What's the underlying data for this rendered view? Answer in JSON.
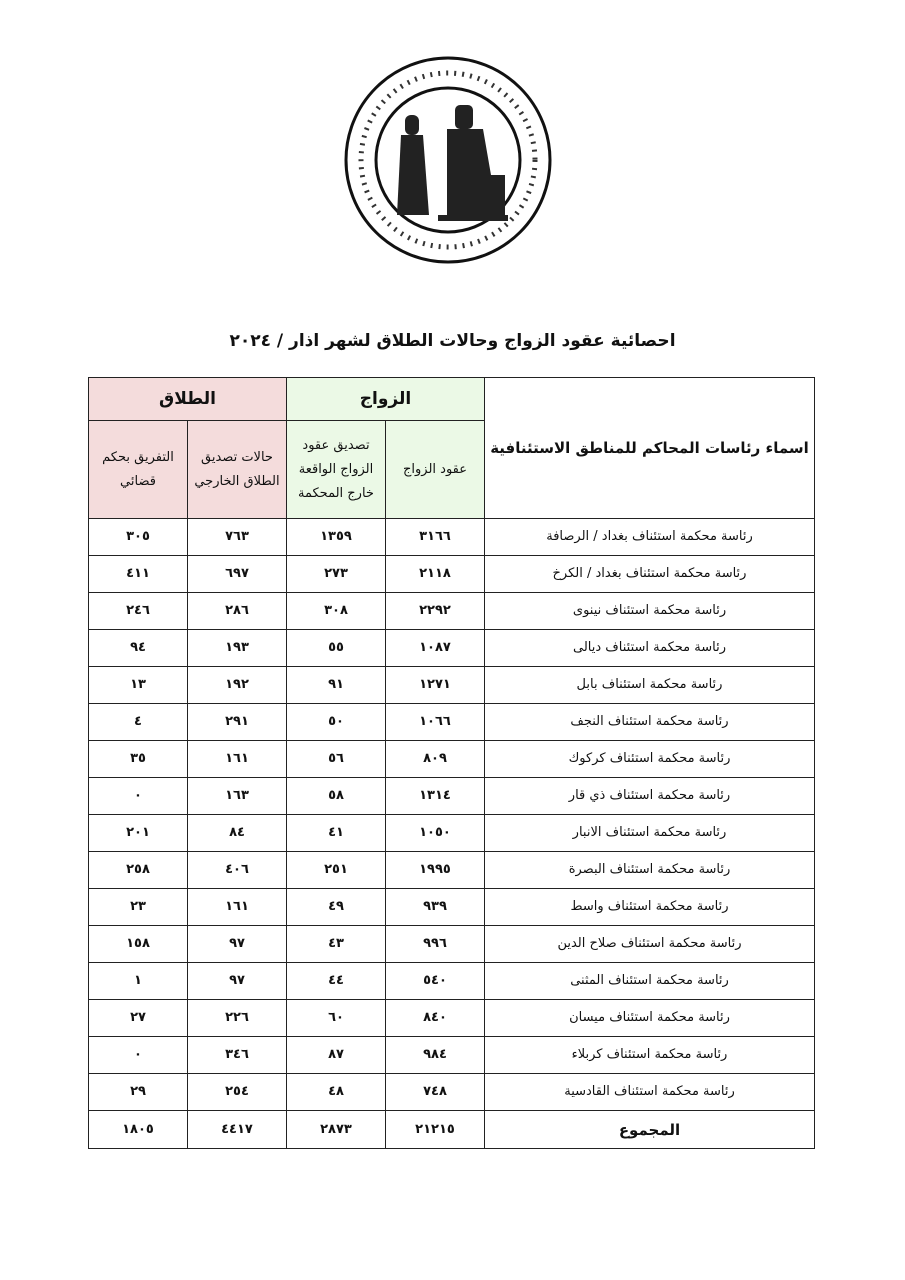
{
  "seal": {
    "arabic_text": "جمهورية العراق مجلس القضاء الأعلى",
    "english_text": "REPUBLIC OF IRAQ SUPREME JUDICIAL COUNCIL"
  },
  "title": "احصائية عقود الزواج وحالات الطلاق لشهر اذار / ٢٠٢٤",
  "headers": {
    "name": "اسماء رئاسات المحاكم للمناطق الاستئنافية",
    "marriage_group": "الزواج",
    "divorce_group": "الطلاق",
    "marriage_contracts": "عقود الزواج",
    "marriage_ratification": "تصديق عقود الزواج الواقعة خارج المحكمة",
    "divorce_ratification": "حالات تصديق الطلاق الخارجي",
    "judicial_separation": "التفريق بحكم قضائي"
  },
  "colors": {
    "marriage_header": "#ebf9e6",
    "divorce_header": "#f4dcdc"
  },
  "rows": [
    {
      "name": "رئاسة محكمة استئناف بغداد / الرصافة",
      "c1": "٣١٦٦",
      "c2": "١٣٥٩",
      "c3": "٧٦٣",
      "c4": "٣٠٥"
    },
    {
      "name": "رئاسة محكمة استئناف بغداد / الكرخ",
      "c1": "٢١١٨",
      "c2": "٢٧٣",
      "c3": "٦٩٧",
      "c4": "٤١١"
    },
    {
      "name": "رئاسة محكمة استئناف نينوى",
      "c1": "٢٢٩٢",
      "c2": "٣٠٨",
      "c3": "٢٨٦",
      "c4": "٢٤٦"
    },
    {
      "name": "رئاسة محكمة استئناف ديالى",
      "c1": "١٠٨٧",
      "c2": "٥٥",
      "c3": "١٩٣",
      "c4": "٩٤"
    },
    {
      "name": "رئاسة محكمة استئناف بابل",
      "c1": "١٢٧١",
      "c2": "٩١",
      "c3": "١٩٢",
      "c4": "١٣"
    },
    {
      "name": "رئاسة محكمة استئناف النجف",
      "c1": "١٠٦٦",
      "c2": "٥٠",
      "c3": "٢٩١",
      "c4": "٤"
    },
    {
      "name": "رئاسة محكمة استئناف كركوك",
      "c1": "٨٠٩",
      "c2": "٥٦",
      "c3": "١٦١",
      "c4": "٣٥"
    },
    {
      "name": "رئاسة محكمة استئناف ذي قار",
      "c1": "١٣١٤",
      "c2": "٥٨",
      "c3": "١٦٣",
      "c4": "٠"
    },
    {
      "name": "رئاسة محكمة استئناف الانبار",
      "c1": "١٠٥٠",
      "c2": "٤١",
      "c3": "٨٤",
      "c4": "٢٠١"
    },
    {
      "name": "رئاسة محكمة استئناف البصرة",
      "c1": "١٩٩٥",
      "c2": "٢٥١",
      "c3": "٤٠٦",
      "c4": "٢٥٨"
    },
    {
      "name": "رئاسة محكمة استئناف واسط",
      "c1": "٩٣٩",
      "c2": "٤٩",
      "c3": "١٦١",
      "c4": "٢٣"
    },
    {
      "name": "رئاسة محكمة استئناف صلاح الدين",
      "c1": "٩٩٦",
      "c2": "٤٣",
      "c3": "٩٧",
      "c4": "١٥٨"
    },
    {
      "name": "رئاسة محكمة استئناف المثنى",
      "c1": "٥٤٠",
      "c2": "٤٤",
      "c3": "٩٧",
      "c4": "١"
    },
    {
      "name": "رئاسة محكمة استئناف ميسان",
      "c1": "٨٤٠",
      "c2": "٦٠",
      "c3": "٢٢٦",
      "c4": "٢٧"
    },
    {
      "name": "رئاسة محكمة استئناف كربلاء",
      "c1": "٩٨٤",
      "c2": "٨٧",
      "c3": "٣٤٦",
      "c4": "٠"
    },
    {
      "name": "رئاسة محكمة استئناف القادسية",
      "c1": "٧٤٨",
      "c2": "٤٨",
      "c3": "٢٥٤",
      "c4": "٢٩"
    }
  ],
  "total": {
    "name": "المجموع",
    "c1": "٢١٢١٥",
    "c2": "٢٨٧٣",
    "c3": "٤٤١٧",
    "c4": "١٨٠٥"
  }
}
